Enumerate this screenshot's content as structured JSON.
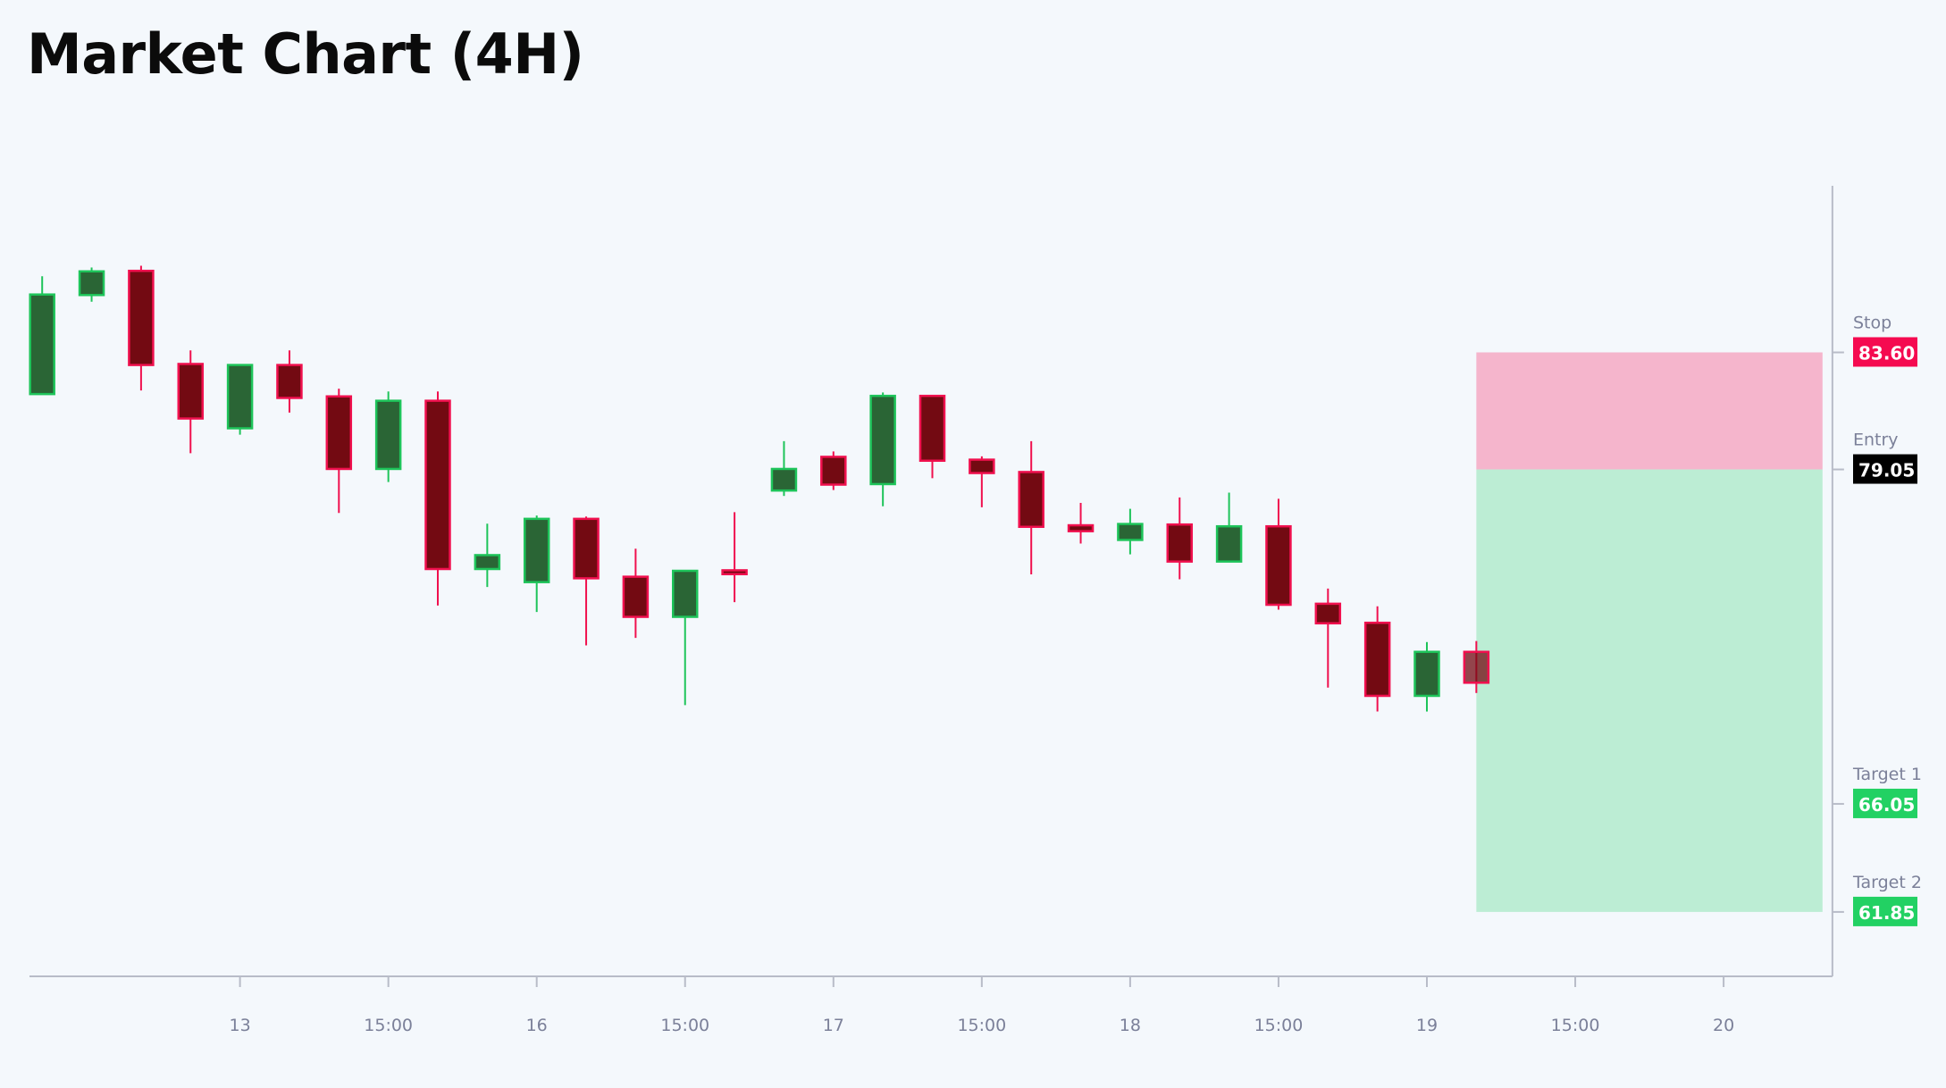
{
  "chart_data": {
    "type": "candlestick",
    "title": "Market Chart (4H)",
    "x_ticks": [
      {
        "index": 4,
        "label": "13"
      },
      {
        "index": 7,
        "label": "15:00"
      },
      {
        "index": 10,
        "label": "16"
      },
      {
        "index": 13,
        "label": "15:00"
      },
      {
        "index": 16,
        "label": "17"
      },
      {
        "index": 19,
        "label": "15:00"
      },
      {
        "index": 22,
        "label": "18"
      },
      {
        "index": 25,
        "label": "15:00"
      },
      {
        "index": 28,
        "label": "19"
      },
      {
        "index": 31,
        "label": "15:00"
      },
      {
        "index": 34,
        "label": "20"
      }
    ],
    "x_range": [
      -0.2,
      36.2
    ],
    "y_range": [
      59.3,
      92.3
    ],
    "grid": false,
    "candles": [
      {
        "o": 81.98,
        "h": 86.56,
        "l": 81.98,
        "c": 85.85
      },
      {
        "o": 85.83,
        "h": 86.9,
        "l": 85.57,
        "c": 86.75
      },
      {
        "o": 86.77,
        "h": 86.97,
        "l": 82.12,
        "c": 83.11
      },
      {
        "o": 83.15,
        "h": 83.68,
        "l": 79.68,
        "c": 81.03
      },
      {
        "o": 80.65,
        "h": 83.11,
        "l": 80.4,
        "c": 83.11
      },
      {
        "o": 83.11,
        "h": 83.68,
        "l": 81.26,
        "c": 81.83
      },
      {
        "o": 81.89,
        "h": 82.19,
        "l": 77.36,
        "c": 79.07
      },
      {
        "o": 79.07,
        "h": 82.08,
        "l": 78.56,
        "c": 81.72
      },
      {
        "o": 81.72,
        "h": 82.08,
        "l": 73.76,
        "c": 75.18
      },
      {
        "o": 75.18,
        "h": 76.94,
        "l": 74.48,
        "c": 75.72
      },
      {
        "o": 74.67,
        "h": 77.26,
        "l": 73.51,
        "c": 77.13
      },
      {
        "o": 77.13,
        "h": 77.22,
        "l": 72.21,
        "c": 74.82
      },
      {
        "o": 74.88,
        "h": 75.97,
        "l": 72.5,
        "c": 73.32
      },
      {
        "o": 73.32,
        "h": 75.11,
        "l": 69.89,
        "c": 75.11
      },
      {
        "o": 75.13,
        "h": 77.39,
        "l": 73.89,
        "c": 74.98
      },
      {
        "o": 78.23,
        "h": 80.15,
        "l": 78.02,
        "c": 79.07
      },
      {
        "o": 79.54,
        "h": 79.75,
        "l": 78.25,
        "c": 78.46
      },
      {
        "o": 78.48,
        "h": 82.04,
        "l": 77.62,
        "c": 81.91
      },
      {
        "o": 81.91,
        "h": 81.94,
        "l": 78.71,
        "c": 79.39
      },
      {
        "o": 79.43,
        "h": 79.56,
        "l": 77.58,
        "c": 78.91
      },
      {
        "o": 78.95,
        "h": 80.15,
        "l": 74.97,
        "c": 76.82
      },
      {
        "o": 76.88,
        "h": 77.75,
        "l": 76.17,
        "c": 76.65
      },
      {
        "o": 76.31,
        "h": 77.52,
        "l": 75.75,
        "c": 76.93
      },
      {
        "o": 76.91,
        "h": 77.96,
        "l": 74.78,
        "c": 75.47
      },
      {
        "o": 75.47,
        "h": 78.15,
        "l": 75.45,
        "c": 76.84
      },
      {
        "o": 76.84,
        "h": 77.91,
        "l": 73.6,
        "c": 73.79
      },
      {
        "o": 73.83,
        "h": 74.42,
        "l": 70.57,
        "c": 73.07
      },
      {
        "o": 73.09,
        "h": 73.73,
        "l": 69.64,
        "c": 70.25
      },
      {
        "o": 70.25,
        "h": 72.34,
        "l": 69.64,
        "c": 71.96
      },
      {
        "o": 71.96,
        "h": 72.38,
        "l": 70.36,
        "c": 70.76
      }
    ],
    "levels": [
      {
        "name": "Stop",
        "value": 83.6,
        "display": "83.60",
        "color": "#f50a50"
      },
      {
        "name": "Entry",
        "value": 79.05,
        "display": "79.05",
        "color": "#000000"
      },
      {
        "name": "Target 1",
        "value": 66.05,
        "display": "66.05",
        "color": "#22d163"
      },
      {
        "name": "Target 2",
        "value": 61.85,
        "display": "61.85",
        "color": "#22d163"
      }
    ],
    "zones": {
      "start_index": 29,
      "end_index": 36,
      "risk_color": "#f5b5cc",
      "reward_color": "#bcedd4"
    },
    "colors": {
      "up_fill": "#2a6535",
      "up_border": "#1ec45a",
      "down_fill": "#730a12",
      "down_border": "#f0104e",
      "axis": "#b8bcc8"
    }
  }
}
